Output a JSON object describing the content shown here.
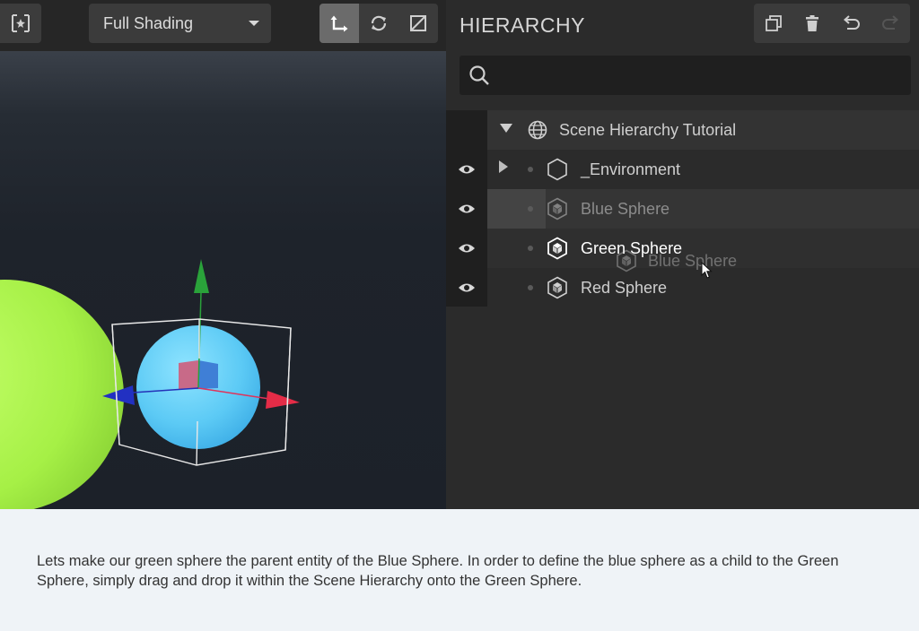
{
  "toolbar": {
    "logo_icon": "entity-logo-icon",
    "shading_mode": "Full Shading",
    "tools": [
      {
        "name": "translate",
        "icon": "translate-icon",
        "active": true
      },
      {
        "name": "rotate",
        "icon": "rotate-icon",
        "active": false
      },
      {
        "name": "scale",
        "icon": "scale-icon",
        "active": false
      }
    ]
  },
  "hierarchy": {
    "title": "HIERARCHY",
    "actions": [
      "duplicate-icon",
      "delete-icon",
      "undo-icon",
      "redo-icon"
    ],
    "search": {
      "placeholder": "",
      "value": ""
    },
    "root": {
      "label": "Scene Hierarchy Tutorial",
      "icon": "globe-icon",
      "expanded": true
    },
    "items": [
      {
        "label": "_Environment",
        "icon": "hexagon-icon",
        "expandable": true
      },
      {
        "label": "Blue Sphere",
        "icon": "cube-icon",
        "state": "dragging"
      },
      {
        "label": "Green Sphere",
        "icon": "cube-icon",
        "state": "drop-target"
      },
      {
        "label": "Red Sphere",
        "icon": "cube-icon",
        "state": "normal"
      }
    ],
    "drag_ghost_label": "Blue Sphere"
  },
  "caption": {
    "text": "Lets make our green sphere the parent entity of the Blue Sphere. In order to define the blue sphere as a child to the Green Sphere, simply drag and drop it within the Scene Hierarchy onto the Green Sphere."
  },
  "colors": {
    "panel_bg": "#2b2b2b",
    "toolbar_bg": "#262626",
    "caption_bg": "#eff3f7",
    "green_sphere": "#a6f046",
    "blue_sphere": "#5cc9f5"
  }
}
